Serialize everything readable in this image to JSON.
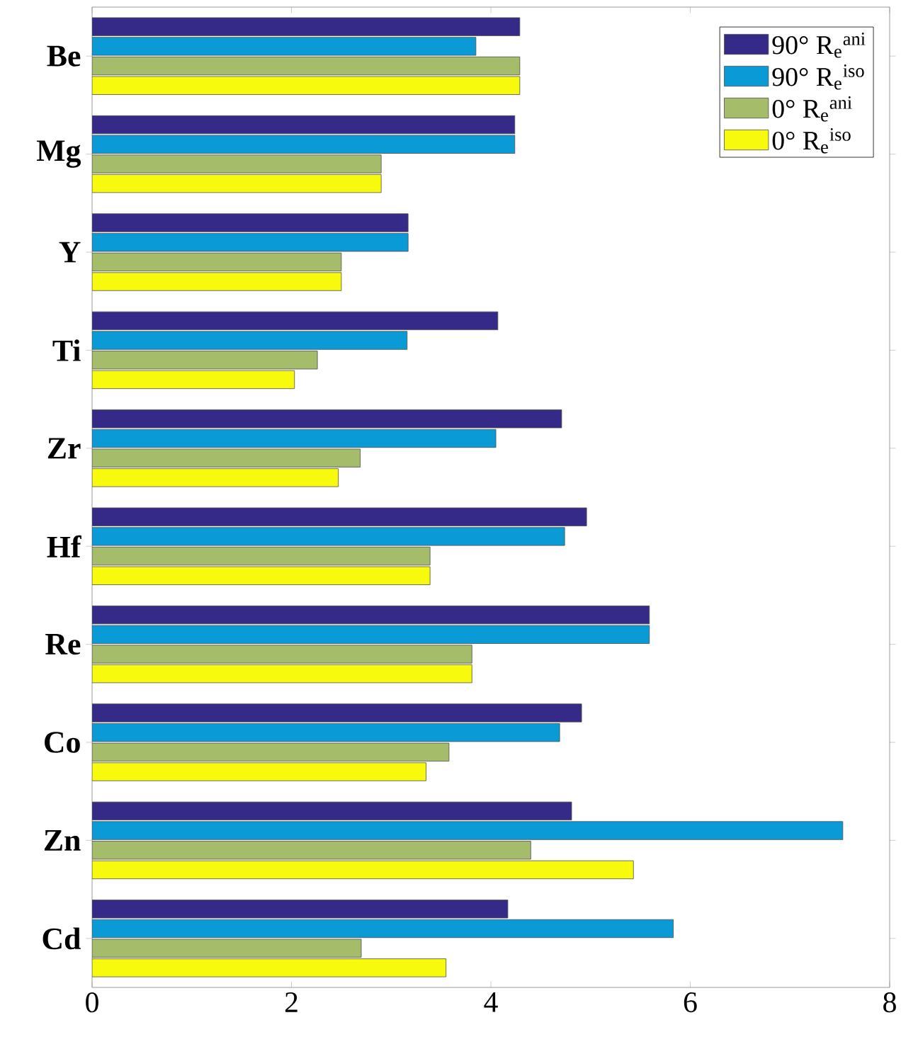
{
  "chart_data": {
    "type": "bar",
    "orientation": "horizontal",
    "categories": [
      "Be",
      "Mg",
      "Y",
      "Ti",
      "Zr",
      "Hf",
      "Re",
      "Co",
      "Zn",
      "Cd"
    ],
    "series": [
      {
        "name": "90° R$_{e}$$^{ani}$",
        "color": "#352a87",
        "values": [
          4.29,
          4.24,
          3.17,
          4.07,
          4.71,
          4.96,
          5.59,
          4.91,
          4.81,
          4.17
        ]
      },
      {
        "name": "90° R$_{e}$$^{iso}$",
        "color": "#0a9bd6",
        "values": [
          3.85,
          4.24,
          3.17,
          3.16,
          4.05,
          4.74,
          5.59,
          4.69,
          7.53,
          5.83
        ]
      },
      {
        "name": "0° R$_{e}$$^{ani}$",
        "color": "#a5bd6b",
        "values": [
          4.29,
          2.9,
          2.5,
          2.26,
          2.69,
          3.39,
          3.81,
          3.58,
          4.4,
          2.7
        ]
      },
      {
        "name": "0° R$_{e}$$^{iso}$",
        "color": "#f8fa0d",
        "values": [
          4.29,
          2.9,
          2.5,
          2.03,
          2.47,
          3.39,
          3.81,
          3.35,
          5.43,
          3.55
        ]
      }
    ],
    "xlim": [
      0,
      8
    ],
    "xticks": [
      0,
      2,
      4,
      6,
      8
    ],
    "legend": "top right"
  }
}
